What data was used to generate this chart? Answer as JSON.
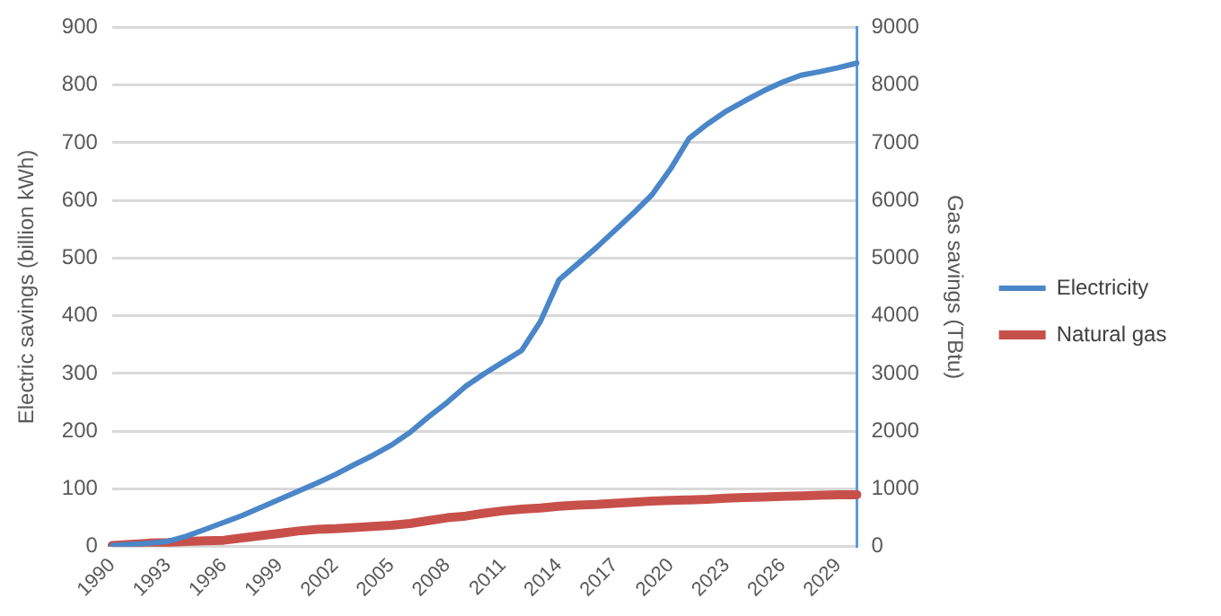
{
  "chart_data": {
    "type": "line",
    "ylabel": "Electric savings (billion kWh)",
    "y2label": "Gas savings (TBtu)",
    "categories": [
      "1990",
      null,
      null,
      "1993",
      null,
      null,
      "1996",
      null,
      null,
      "1999",
      null,
      null,
      "2002",
      null,
      null,
      "2005",
      null,
      null,
      "2008",
      null,
      null,
      "2011",
      null,
      null,
      "2014",
      null,
      null,
      "2017",
      null,
      null,
      "2020",
      null,
      null,
      "2023",
      null,
      null,
      "2026",
      null,
      null,
      "2029",
      null
    ],
    "series": [
      {
        "name": "Electricity",
        "color": "#4a86c8",
        "values": [
          2,
          4,
          6,
          9,
          18,
          30,
          42,
          54,
          68,
          82,
          96,
          110,
          125,
          142,
          158,
          176,
          198,
          225,
          250,
          278,
          300,
          320,
          340,
          390,
          462,
          490,
          518,
          548,
          578,
          610,
          655,
          708,
          733,
          755,
          773,
          790,
          805,
          817,
          823,
          830,
          838
        ]
      },
      {
        "name": "Natural gas",
        "color": "#c8504b",
        "axis": "y2",
        "values": [
          20,
          40,
          60,
          70,
          90,
          100,
          110,
          150,
          190,
          230,
          270,
          300,
          310,
          330,
          350,
          370,
          400,
          450,
          500,
          530,
          580,
          620,
          650,
          670,
          700,
          720,
          730,
          750,
          770,
          790,
          800,
          810,
          820,
          840,
          850,
          860,
          870,
          880,
          890,
          900,
          900
        ]
      }
    ],
    "ylim": [
      0,
      900
    ],
    "yticks": [
      0,
      100,
      200,
      300,
      400,
      500,
      600,
      700,
      800,
      900
    ],
    "y2lim": [
      0,
      9000
    ],
    "y2ticks": [
      0,
      1000,
      2000,
      3000,
      4000,
      5000,
      6000,
      7000,
      8000,
      9000
    ],
    "grid": "y",
    "legend": "right",
    "marker": "none",
    "line_style": "solid"
  }
}
